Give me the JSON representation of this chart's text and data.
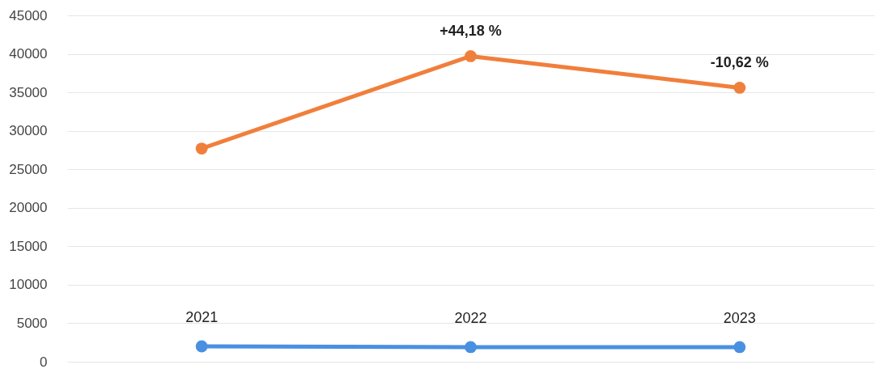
{
  "chart_data": {
    "type": "line",
    "categories": [
      "2021",
      "2022",
      "2023"
    ],
    "series": [
      {
        "color": "#f07f3c",
        "values": [
          27700,
          39700,
          35600
        ]
      },
      {
        "color": "#4a90e2",
        "values": [
          2000,
          1900,
          1900
        ]
      }
    ],
    "ylim": [
      0,
      45000
    ],
    "yticks": [
      0,
      5000,
      10000,
      15000,
      20000,
      25000,
      30000,
      35000,
      40000,
      45000
    ],
    "grid": "y",
    "legend": false,
    "marker": "circle",
    "line_style": "solid",
    "annotations": [
      {
        "text": "+44,18 %",
        "x": "2022",
        "y": 39700
      },
      {
        "text": "-10,62 %",
        "x": "2023",
        "y": 35600
      }
    ]
  }
}
